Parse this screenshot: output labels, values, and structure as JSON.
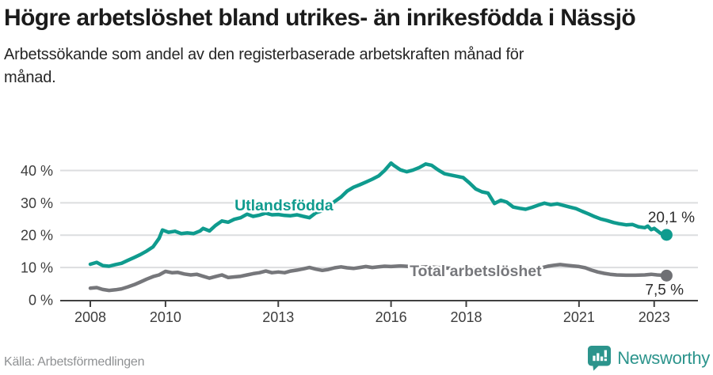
{
  "header": {
    "title": "Högre arbetslöshet bland utrikes- än inrikesfödda i Nässjö",
    "subtitle": "Arbetssökande som andel av den registerbaserade arbetskraften månad för månad."
  },
  "footer": {
    "source": "Källa: Arbetsförmedlingen",
    "brand": "Newsworthy"
  },
  "colors": {
    "accent_teal": "#0f9b8e",
    "line_gray": "#76777b",
    "gray_dot": "#6f7074",
    "grid": "#dcdddf",
    "axis": "#404040",
    "tick_label": "#3d3d3d",
    "value_label": "#2c2c2c",
    "logo_teal": "#2c948c"
  },
  "chart_data": {
    "type": "line",
    "xlabel": "",
    "ylabel": "",
    "grid": true,
    "xlim": [
      2007.25,
      2024.1
    ],
    "ylim": [
      0,
      45
    ],
    "x_ticks": [
      2008,
      2010,
      2013,
      2016,
      2018,
      2021,
      2023
    ],
    "y_ticks": [
      {
        "value": 0,
        "label": "0 %"
      },
      {
        "value": 10,
        "label": "10 %"
      },
      {
        "value": 20,
        "label": "20 %"
      },
      {
        "value": 30,
        "label": "30 %"
      },
      {
        "value": 40,
        "label": "40 %"
      }
    ],
    "series": [
      {
        "name": "Utlandsfödda",
        "color": "#0f9b8e",
        "dot_color": "#0f9b8e",
        "end_label": "20,1 %",
        "end_value": 20.1,
        "inline_label_pos": {
          "x": 2013.15,
          "y": 27.6
        },
        "points": [
          [
            2008.0,
            11.0
          ],
          [
            2008.17,
            11.6
          ],
          [
            2008.33,
            10.6
          ],
          [
            2008.5,
            10.4
          ],
          [
            2008.67,
            10.9
          ],
          [
            2008.83,
            11.3
          ],
          [
            2009.0,
            12.2
          ],
          [
            2009.17,
            13.1
          ],
          [
            2009.33,
            14.0
          ],
          [
            2009.5,
            15.1
          ],
          [
            2009.67,
            16.4
          ],
          [
            2009.83,
            19.0
          ],
          [
            2009.92,
            21.6
          ],
          [
            2010.08,
            20.9
          ],
          [
            2010.25,
            21.2
          ],
          [
            2010.42,
            20.5
          ],
          [
            2010.58,
            20.7
          ],
          [
            2010.75,
            20.5
          ],
          [
            2010.92,
            21.3
          ],
          [
            2011.0,
            22.1
          ],
          [
            2011.17,
            21.3
          ],
          [
            2011.33,
            23.0
          ],
          [
            2011.5,
            24.4
          ],
          [
            2011.67,
            24.0
          ],
          [
            2011.83,
            24.9
          ],
          [
            2012.0,
            25.4
          ],
          [
            2012.17,
            26.5
          ],
          [
            2012.33,
            25.8
          ],
          [
            2012.5,
            26.2
          ],
          [
            2012.67,
            26.8
          ],
          [
            2012.83,
            26.3
          ],
          [
            2013.0,
            26.4
          ],
          [
            2013.17,
            26.1
          ],
          [
            2013.33,
            26.0
          ],
          [
            2013.5,
            26.3
          ],
          [
            2013.67,
            25.8
          ],
          [
            2013.83,
            25.4
          ],
          [
            2014.0,
            26.9
          ],
          [
            2014.17,
            27.6
          ],
          [
            2014.33,
            28.8
          ],
          [
            2014.5,
            30.4
          ],
          [
            2014.67,
            31.8
          ],
          [
            2014.83,
            33.6
          ],
          [
            2015.0,
            34.8
          ],
          [
            2015.17,
            35.6
          ],
          [
            2015.33,
            36.4
          ],
          [
            2015.5,
            37.3
          ],
          [
            2015.67,
            38.3
          ],
          [
            2015.83,
            40.0
          ],
          [
            2016.0,
            42.3
          ],
          [
            2016.08,
            41.5
          ],
          [
            2016.25,
            40.2
          ],
          [
            2016.42,
            39.6
          ],
          [
            2016.58,
            40.1
          ],
          [
            2016.75,
            40.9
          ],
          [
            2016.92,
            42.0
          ],
          [
            2017.08,
            41.6
          ],
          [
            2017.25,
            40.2
          ],
          [
            2017.42,
            39.0
          ],
          [
            2017.58,
            38.6
          ],
          [
            2017.75,
            38.2
          ],
          [
            2017.92,
            37.8
          ],
          [
            2018.08,
            36.2
          ],
          [
            2018.25,
            34.3
          ],
          [
            2018.42,
            33.4
          ],
          [
            2018.58,
            33.0
          ],
          [
            2018.75,
            29.8
          ],
          [
            2018.92,
            30.8
          ],
          [
            2019.08,
            30.2
          ],
          [
            2019.25,
            28.7
          ],
          [
            2019.42,
            28.3
          ],
          [
            2019.58,
            28.0
          ],
          [
            2019.75,
            28.6
          ],
          [
            2019.92,
            29.3
          ],
          [
            2020.08,
            29.9
          ],
          [
            2020.25,
            29.4
          ],
          [
            2020.42,
            29.7
          ],
          [
            2020.58,
            29.2
          ],
          [
            2020.75,
            28.7
          ],
          [
            2020.92,
            28.2
          ],
          [
            2021.08,
            27.4
          ],
          [
            2021.25,
            26.6
          ],
          [
            2021.42,
            25.7
          ],
          [
            2021.58,
            25.0
          ],
          [
            2021.75,
            24.5
          ],
          [
            2021.92,
            23.9
          ],
          [
            2022.08,
            23.5
          ],
          [
            2022.25,
            23.2
          ],
          [
            2022.42,
            23.3
          ],
          [
            2022.58,
            22.6
          ],
          [
            2022.75,
            22.3
          ],
          [
            2022.83,
            22.8
          ],
          [
            2022.92,
            21.7
          ],
          [
            2023.0,
            22.1
          ],
          [
            2023.17,
            20.6
          ],
          [
            2023.33,
            20.1
          ]
        ]
      },
      {
        "name": "Total arbetslöshet",
        "color": "#76777b",
        "dot_color": "#6f7074",
        "end_label": "7,5 %",
        "end_value": 7.5,
        "inline_label_pos": {
          "x": 2018.25,
          "y": 7.3
        },
        "points": [
          [
            2008.0,
            3.6
          ],
          [
            2008.17,
            3.8
          ],
          [
            2008.33,
            3.2
          ],
          [
            2008.5,
            2.9
          ],
          [
            2008.67,
            3.1
          ],
          [
            2008.83,
            3.4
          ],
          [
            2009.0,
            4.0
          ],
          [
            2009.17,
            4.7
          ],
          [
            2009.33,
            5.5
          ],
          [
            2009.5,
            6.4
          ],
          [
            2009.67,
            7.2
          ],
          [
            2009.83,
            7.7
          ],
          [
            2010.0,
            8.8
          ],
          [
            2010.17,
            8.4
          ],
          [
            2010.33,
            8.5
          ],
          [
            2010.5,
            8.0
          ],
          [
            2010.67,
            7.7
          ],
          [
            2010.83,
            7.9
          ],
          [
            2011.0,
            7.3
          ],
          [
            2011.17,
            6.7
          ],
          [
            2011.33,
            7.2
          ],
          [
            2011.5,
            7.7
          ],
          [
            2011.67,
            6.9
          ],
          [
            2011.83,
            7.1
          ],
          [
            2012.0,
            7.3
          ],
          [
            2012.17,
            7.7
          ],
          [
            2012.33,
            8.1
          ],
          [
            2012.5,
            8.4
          ],
          [
            2012.67,
            8.9
          ],
          [
            2012.83,
            8.4
          ],
          [
            2013.0,
            8.6
          ],
          [
            2013.17,
            8.4
          ],
          [
            2013.33,
            8.9
          ],
          [
            2013.5,
            9.2
          ],
          [
            2013.67,
            9.6
          ],
          [
            2013.83,
            10.0
          ],
          [
            2014.0,
            9.5
          ],
          [
            2014.17,
            9.1
          ],
          [
            2014.33,
            9.4
          ],
          [
            2014.5,
            9.9
          ],
          [
            2014.67,
            10.2
          ],
          [
            2014.83,
            9.9
          ],
          [
            2015.0,
            9.7
          ],
          [
            2015.17,
            10.0
          ],
          [
            2015.33,
            10.3
          ],
          [
            2015.5,
            10.0
          ],
          [
            2015.67,
            10.2
          ],
          [
            2015.83,
            10.4
          ],
          [
            2016.0,
            10.3
          ],
          [
            2016.25,
            10.5
          ],
          [
            2016.5,
            10.3
          ],
          [
            2016.75,
            10.1
          ],
          [
            2017.0,
            10.2
          ],
          [
            2017.25,
            10.0
          ],
          [
            2017.5,
            9.8
          ],
          [
            2017.75,
            9.6
          ],
          [
            2018.0,
            9.5
          ],
          [
            2018.25,
            9.3
          ],
          [
            2018.5,
            9.2
          ],
          [
            2018.75,
            9.3
          ],
          [
            2019.0,
            9.1
          ],
          [
            2019.25,
            9.0
          ],
          [
            2019.5,
            9.2
          ],
          [
            2019.75,
            9.5
          ],
          [
            2020.0,
            9.9
          ],
          [
            2020.17,
            10.4
          ],
          [
            2020.33,
            10.7
          ],
          [
            2020.5,
            10.9
          ],
          [
            2020.67,
            10.7
          ],
          [
            2020.83,
            10.5
          ],
          [
            2021.0,
            10.3
          ],
          [
            2021.17,
            9.9
          ],
          [
            2021.33,
            9.2
          ],
          [
            2021.5,
            8.6
          ],
          [
            2021.67,
            8.2
          ],
          [
            2021.83,
            7.9
          ],
          [
            2022.0,
            7.7
          ],
          [
            2022.25,
            7.6
          ],
          [
            2022.5,
            7.6
          ],
          [
            2022.75,
            7.7
          ],
          [
            2022.92,
            7.9
          ],
          [
            2023.08,
            7.7
          ],
          [
            2023.33,
            7.5
          ]
        ]
      }
    ]
  }
}
